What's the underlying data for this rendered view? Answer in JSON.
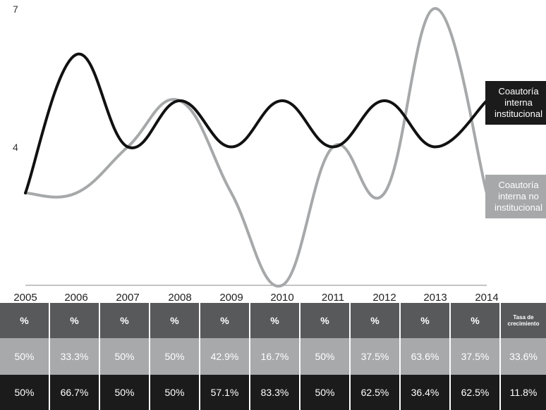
{
  "chart_data": {
    "type": "line",
    "x": [
      "2005",
      "2006",
      "2007",
      "2008",
      "2009",
      "2010",
      "2011",
      "2012",
      "2013",
      "2014"
    ],
    "y_ticks": [
      "7",
      "4"
    ],
    "ylim": [
      1,
      7
    ],
    "series": [
      {
        "name": "Coautoría interna institucional",
        "name_lines": [
          "Coautoría",
          "interna",
          "institucional"
        ],
        "color": "#111111",
        "values": [
          3,
          6,
          4,
          5,
          4,
          5,
          4,
          5,
          4,
          5
        ]
      },
      {
        "name": "Coautoría interna no institucional",
        "name_lines": [
          "Coautoría",
          "interna no",
          "institucional"
        ],
        "color": "#a6a8a9",
        "values": [
          3,
          3,
          4,
          5,
          3,
          1,
          4,
          3,
          7,
          3
        ]
      }
    ],
    "grid": false,
    "legend": "right"
  },
  "table": {
    "header": [
      "%",
      "%",
      "%",
      "%",
      "%",
      "%",
      "%",
      "%",
      "%",
      "%",
      "Tasa de crecimiento"
    ],
    "rows": [
      [
        "50%",
        "33.3%",
        "50%",
        "50%",
        "42.9%",
        "16.7%",
        "50%",
        "37.5%",
        "63.6%",
        "37.5%",
        "33.6%"
      ],
      [
        "50%",
        "66.7%",
        "50%",
        "50%",
        "57.1%",
        "83.3%",
        "50%",
        "62.5%",
        "36.4%",
        "62.5%",
        "11.8%"
      ]
    ]
  }
}
